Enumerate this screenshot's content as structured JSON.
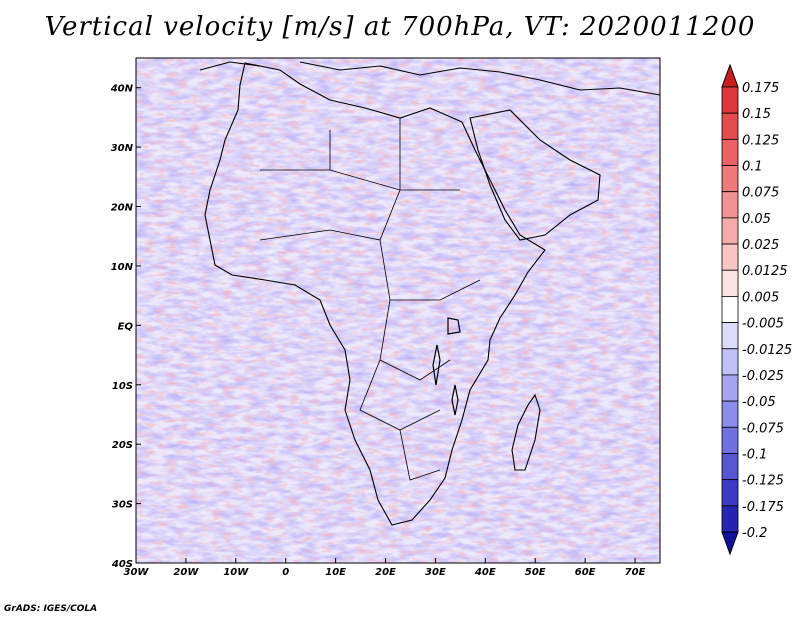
{
  "title": "Vertical velocity [m/s] at 700hPa, VT: 2020011200",
  "credit": "GrADS: IGES/COLA",
  "map": {
    "lon_range": [
      -30,
      75
    ],
    "lat_range": [
      -40,
      45
    ],
    "lat_ticks": [
      "40N",
      "30N",
      "20N",
      "10N",
      "EQ",
      "10S",
      "20S",
      "30S",
      "40S"
    ],
    "lat_values": [
      40,
      30,
      20,
      10,
      0,
      -10,
      -20,
      -30,
      -40
    ],
    "lon_ticks": [
      "30W",
      "20W",
      "10W",
      "0",
      "10E",
      "20E",
      "30E",
      "40E",
      "50E",
      "60E",
      "70E"
    ],
    "lon_values": [
      -30,
      -20,
      -10,
      0,
      10,
      20,
      30,
      40,
      50,
      60,
      70
    ]
  },
  "colorbar": {
    "labels": [
      "0.175",
      "0.15",
      "0.125",
      "0.1",
      "0.075",
      "0.05",
      "0.025",
      "0.0125",
      "0.005",
      "-0.005",
      "-0.0125",
      "-0.025",
      "-0.05",
      "-0.075",
      "-0.1",
      "-0.125",
      "-0.175",
      "-0.2"
    ],
    "colors": [
      "#c81e1e",
      "#d9373a",
      "#e34d50",
      "#ea6266",
      "#ee7a7c",
      "#f29294",
      "#f5aaab",
      "#f9c6c6",
      "#fce4e4",
      "#ffffff",
      "#dcdcfa",
      "#c1c1f6",
      "#a6a6f0",
      "#8b8be8",
      "#7070de",
      "#5656d2",
      "#3b3bc4",
      "#2525b0",
      "#10109a"
    ]
  }
}
